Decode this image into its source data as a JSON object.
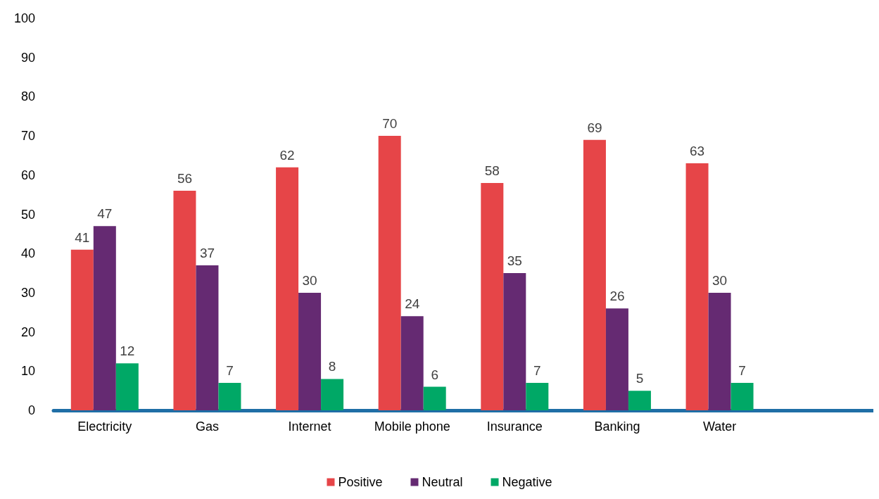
{
  "chart_data": {
    "type": "bar",
    "categories": [
      "Electricity",
      "Gas",
      "Internet",
      "Mobile phone",
      "Insurance",
      "Banking",
      "Water",
      null
    ],
    "series": [
      {
        "name": "Positive",
        "color": "#e64548",
        "values": [
          41,
          56,
          62,
          70,
          58,
          69,
          63,
          null
        ]
      },
      {
        "name": "Neutral",
        "color": "#652a72",
        "values": [
          47,
          37,
          30,
          24,
          35,
          26,
          30,
          null
        ]
      },
      {
        "name": "Negative",
        "color": "#00a866",
        "values": [
          12,
          7,
          8,
          6,
          7,
          5,
          7,
          null
        ]
      }
    ],
    "ylim": [
      0,
      100
    ],
    "yticks": [
      0,
      10,
      20,
      30,
      40,
      50,
      60,
      70,
      80,
      90,
      100
    ],
    "grid": false,
    "legend": "bottom",
    "data_labels": true
  }
}
